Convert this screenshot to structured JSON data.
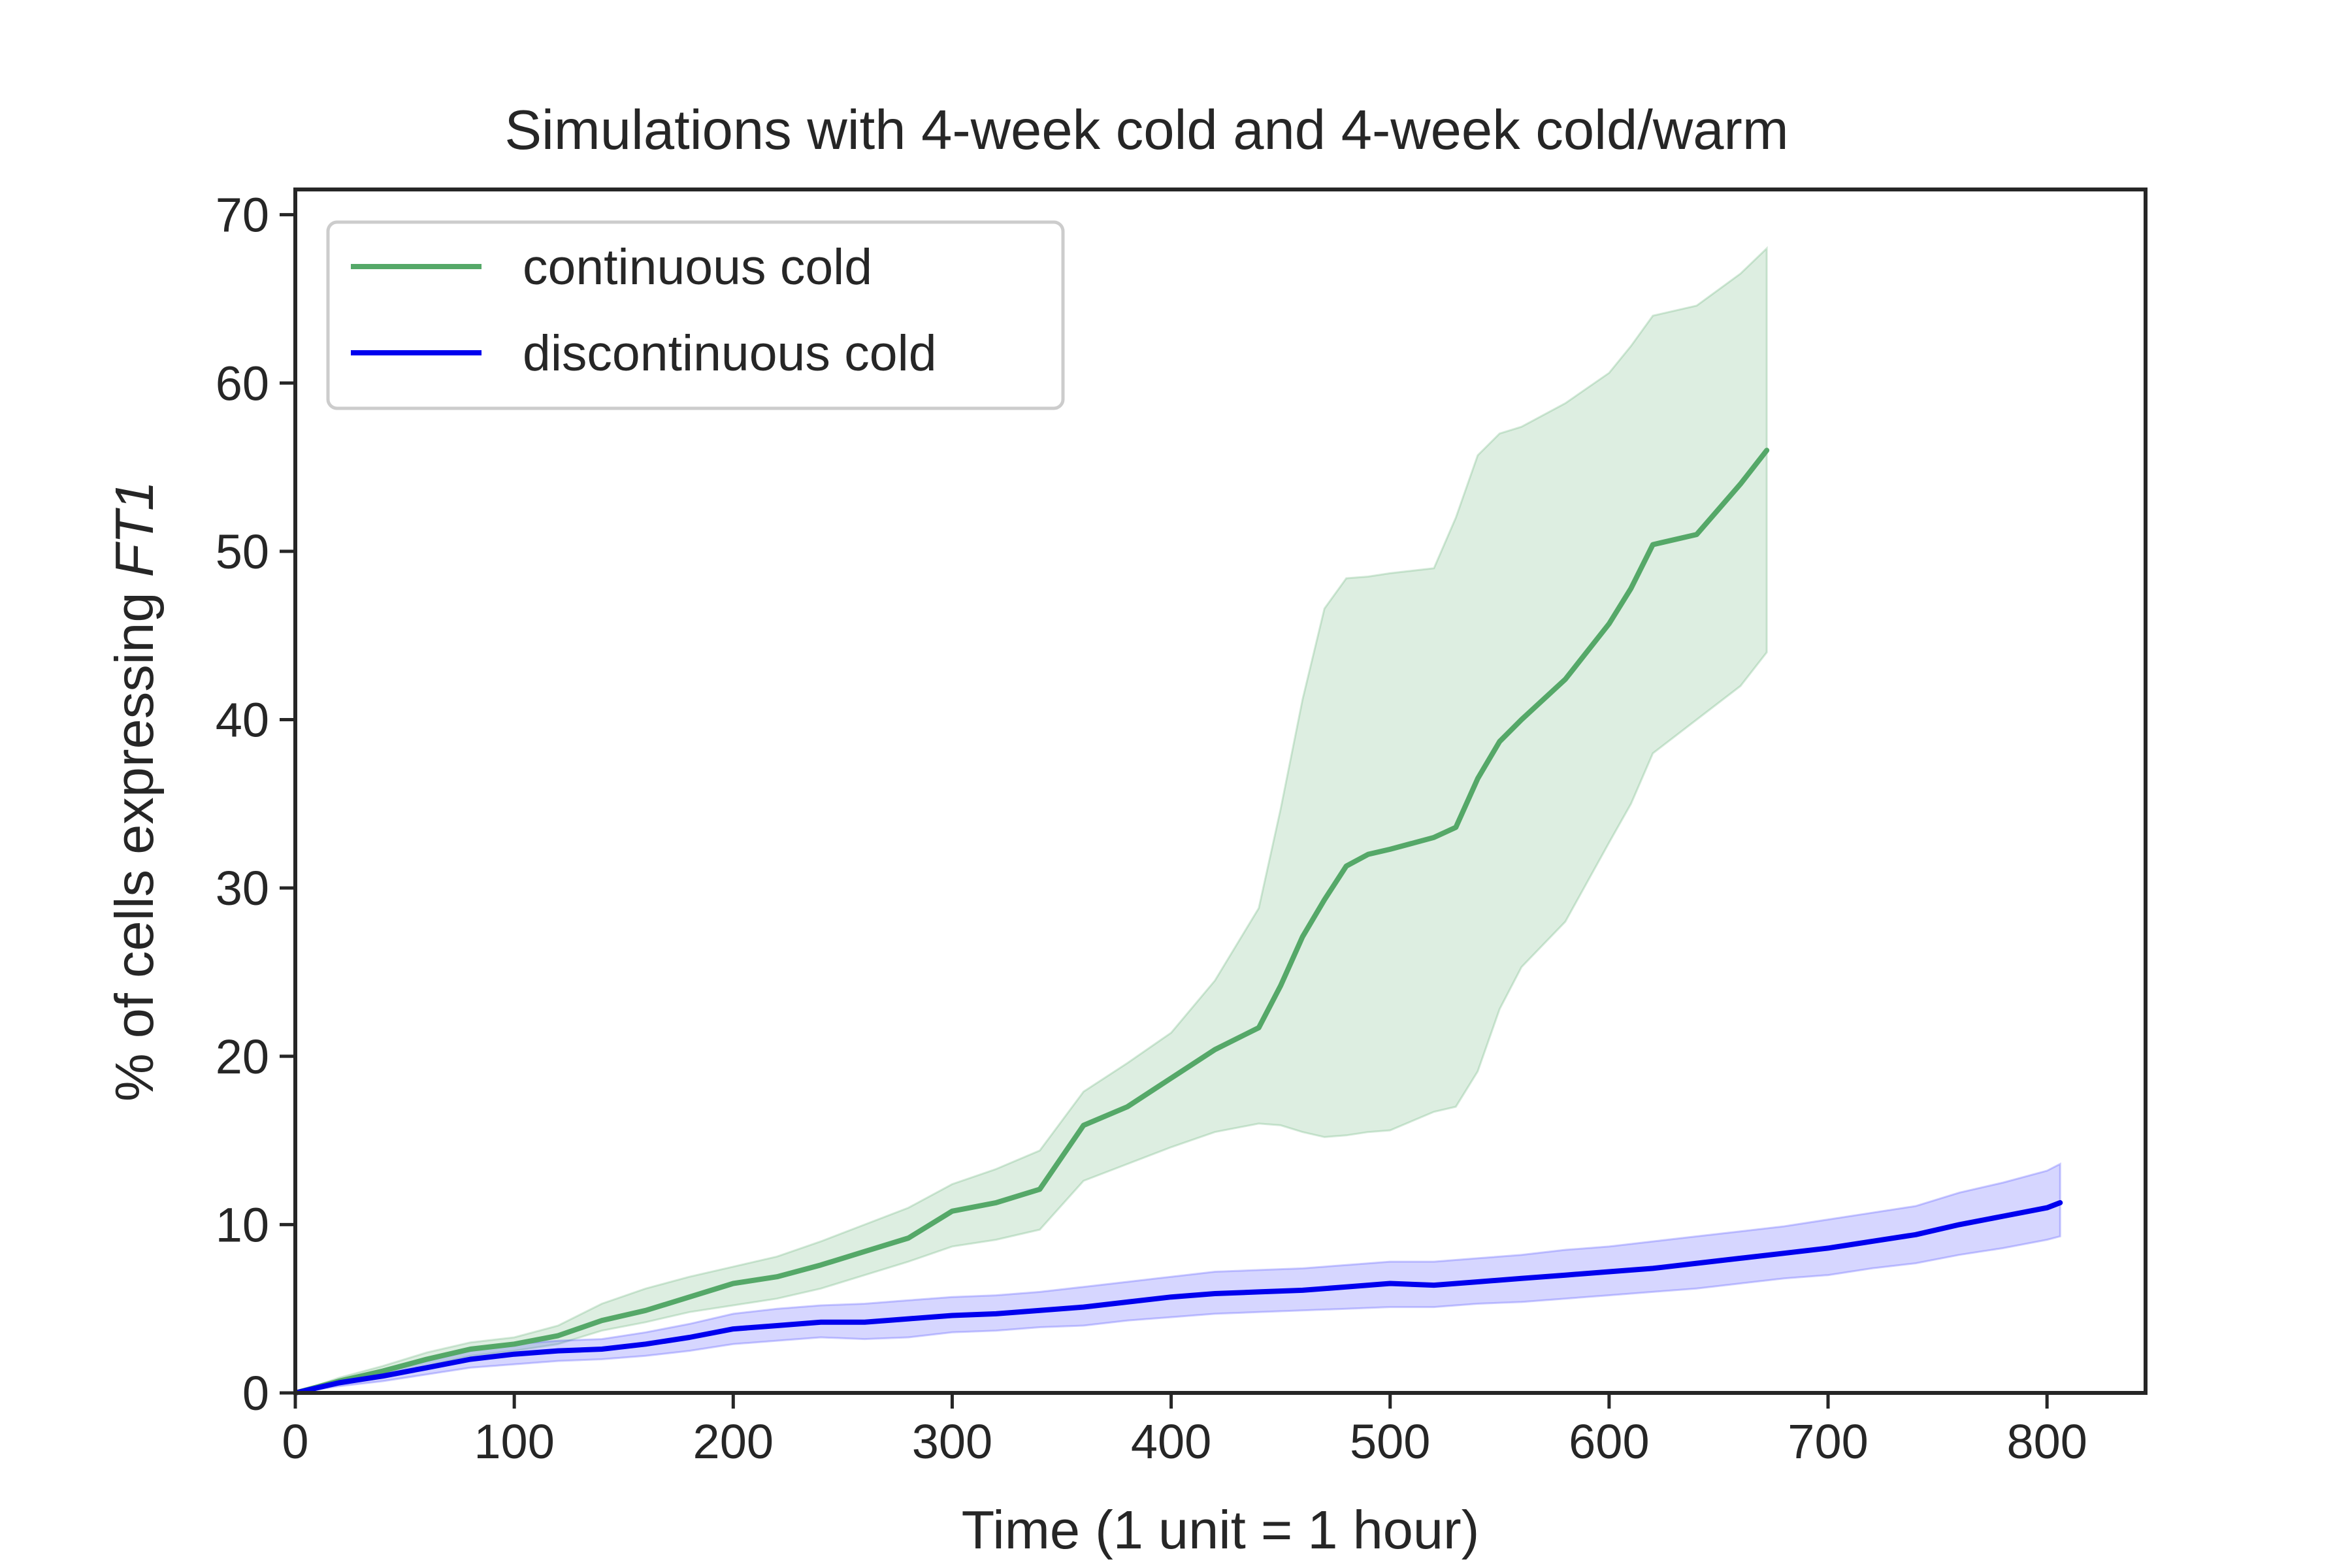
{
  "chart_data": {
    "type": "line",
    "title": "Simulations with 4-week cold and 4-week cold/warm",
    "xlabel": "Time (1 unit = 1 hour)",
    "ylabel_prefix": "% of cells expressing ",
    "ylabel_italic": "FT1",
    "xlim": [
      0,
      845
    ],
    "ylim": [
      0,
      71.5
    ],
    "xticks": [
      0,
      100,
      200,
      300,
      400,
      500,
      600,
      700,
      800
    ],
    "yticks": [
      0,
      10,
      20,
      30,
      40,
      50,
      60,
      70
    ],
    "grid": false,
    "legend_position": "upper-left",
    "series": [
      {
        "name": "continuous cold",
        "color": "#55a868",
        "fill_color": "#55a868",
        "x": [
          0,
          20,
          40,
          60,
          80,
          100,
          120,
          140,
          160,
          180,
          200,
          220,
          240,
          260,
          280,
          300,
          320,
          340,
          360,
          380,
          400,
          420,
          440,
          450,
          460,
          470,
          480,
          490,
          500,
          520,
          530,
          540,
          550,
          560,
          580,
          600,
          610,
          620,
          640,
          660,
          672
        ],
        "y": [
          0,
          0.7,
          1.3,
          2.0,
          2.6,
          2.9,
          3.4,
          4.3,
          4.9,
          5.7,
          6.5,
          6.9,
          7.6,
          8.4,
          9.2,
          10.8,
          11.3,
          12.1,
          15.9,
          17.0,
          18.7,
          20.4,
          21.7,
          24.2,
          27.1,
          29.3,
          31.3,
          32.0,
          32.3,
          33.0,
          33.6,
          36.5,
          38.7,
          40.0,
          42.4,
          45.7,
          47.8,
          50.4,
          51.0,
          54.0,
          56.0
        ],
        "lower": [
          0,
          0.5,
          1.0,
          1.6,
          2.2,
          2.5,
          2.9,
          3.7,
          4.2,
          4.8,
          5.2,
          5.6,
          6.2,
          7.0,
          7.8,
          8.7,
          9.1,
          9.7,
          12.6,
          13.6,
          14.6,
          15.5,
          16.0,
          15.9,
          15.5,
          15.2,
          15.3,
          15.5,
          15.6,
          16.7,
          17.0,
          19.1,
          22.8,
          25.3,
          28.0,
          32.7,
          35.0,
          38.0,
          40.0,
          42.0,
          44.0
        ],
        "upper": [
          0,
          0.9,
          1.6,
          2.4,
          3.0,
          3.3,
          4.0,
          5.3,
          6.2,
          6.9,
          7.5,
          8.1,
          9.0,
          10.0,
          11.0,
          12.4,
          13.3,
          14.4,
          17.9,
          19.6,
          21.4,
          24.5,
          28.8,
          34.7,
          41.2,
          46.6,
          48.4,
          48.5,
          48.7,
          49.0,
          52.0,
          55.7,
          57.0,
          57.4,
          58.8,
          60.6,
          62.2,
          64.0,
          64.6,
          66.5,
          68.0
        ]
      },
      {
        "name": "discontinuous cold",
        "color": "#0000ee",
        "fill_color": "#3333ff",
        "x": [
          0,
          20,
          40,
          60,
          80,
          100,
          120,
          140,
          160,
          180,
          200,
          220,
          240,
          260,
          280,
          300,
          320,
          340,
          360,
          380,
          400,
          420,
          440,
          460,
          480,
          500,
          520,
          540,
          560,
          580,
          600,
          620,
          640,
          660,
          680,
          700,
          720,
          740,
          760,
          780,
          800,
          806
        ],
        "y": [
          0,
          0.6,
          1.0,
          1.5,
          2.0,
          2.3,
          2.5,
          2.6,
          2.9,
          3.3,
          3.8,
          4.0,
          4.2,
          4.2,
          4.4,
          4.6,
          4.7,
          4.9,
          5.1,
          5.4,
          5.7,
          5.9,
          6.0,
          6.1,
          6.3,
          6.5,
          6.4,
          6.6,
          6.8,
          7.0,
          7.2,
          7.4,
          7.7,
          8.0,
          8.3,
          8.6,
          9.0,
          9.4,
          10.0,
          10.5,
          11.0,
          11.3
        ],
        "lower": [
          0,
          0.4,
          0.7,
          1.1,
          1.5,
          1.7,
          1.9,
          2.0,
          2.2,
          2.5,
          2.9,
          3.1,
          3.3,
          3.2,
          3.3,
          3.6,
          3.7,
          3.9,
          4.0,
          4.3,
          4.5,
          4.7,
          4.8,
          4.9,
          5.0,
          5.1,
          5.1,
          5.3,
          5.4,
          5.6,
          5.8,
          6.0,
          6.2,
          6.5,
          6.8,
          7.0,
          7.4,
          7.7,
          8.2,
          8.6,
          9.1,
          9.3
        ],
        "upper": [
          0,
          0.8,
          1.3,
          1.9,
          2.5,
          2.9,
          3.1,
          3.2,
          3.6,
          4.1,
          4.7,
          5.0,
          5.2,
          5.3,
          5.5,
          5.7,
          5.8,
          6.0,
          6.3,
          6.6,
          6.9,
          7.2,
          7.3,
          7.4,
          7.6,
          7.8,
          7.8,
          8.0,
          8.2,
          8.5,
          8.7,
          9.0,
          9.3,
          9.6,
          9.9,
          10.3,
          10.7,
          11.1,
          11.9,
          12.5,
          13.2,
          13.6
        ]
      }
    ]
  }
}
